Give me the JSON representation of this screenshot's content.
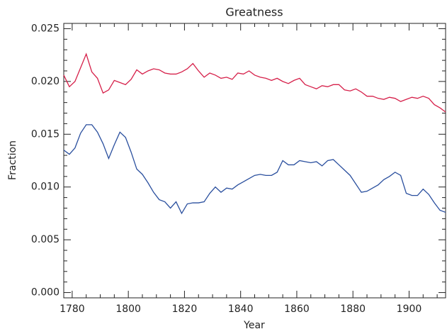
{
  "chart_data": {
    "type": "line",
    "title": "Greatness",
    "x_label": "Year",
    "y_label": "Fraction",
    "x": [
      1777,
      1779,
      1781,
      1783,
      1785,
      1787,
      1789,
      1791,
      1793,
      1795,
      1797,
      1799,
      1801,
      1803,
      1805,
      1807,
      1809,
      1811,
      1813,
      1815,
      1817,
      1819,
      1821,
      1823,
      1825,
      1827,
      1829,
      1831,
      1833,
      1835,
      1837,
      1839,
      1841,
      1843,
      1845,
      1847,
      1849,
      1851,
      1853,
      1855,
      1857,
      1859,
      1861,
      1863,
      1865,
      1867,
      1869,
      1871,
      1873,
      1875,
      1877,
      1879,
      1881,
      1883,
      1885,
      1887,
      1889,
      1891,
      1893,
      1895,
      1897,
      1899,
      1901,
      1903,
      1905,
      1907,
      1909,
      1911,
      1913
    ],
    "series": [
      {
        "color": "#d6204a",
        "values": [
          0.0206,
          0.0195,
          0.02,
          0.0213,
          0.0226,
          0.0209,
          0.0203,
          0.0189,
          0.0192,
          0.0201,
          0.0199,
          0.0197,
          0.0202,
          0.0211,
          0.0207,
          0.021,
          0.0212,
          0.0211,
          0.0208,
          0.0207,
          0.0207,
          0.0209,
          0.0212,
          0.0217,
          0.021,
          0.0204,
          0.0208,
          0.0206,
          0.0203,
          0.0204,
          0.0202,
          0.0208,
          0.0207,
          0.021,
          0.0206,
          0.0204,
          0.0203,
          0.0201,
          0.0203,
          0.02,
          0.0198,
          0.0201,
          0.0203,
          0.0197,
          0.0195,
          0.0193,
          0.0196,
          0.0195,
          0.0197,
          0.0197,
          0.0192,
          0.0191,
          0.0193,
          0.019,
          0.0186,
          0.0186,
          0.0184,
          0.0183,
          0.0185,
          0.0184,
          0.0181,
          0.0183,
          0.0185,
          0.0184,
          0.0186,
          0.0184,
          0.0178,
          0.0175,
          0.0171
        ]
      },
      {
        "color": "#2a4f9e",
        "values": [
          0.0135,
          0.0131,
          0.0137,
          0.0151,
          0.0159,
          0.0159,
          0.0152,
          0.0141,
          0.0127,
          0.014,
          0.0152,
          0.0147,
          0.0133,
          0.0117,
          0.0112,
          0.0104,
          0.0095,
          0.0088,
          0.0086,
          0.008,
          0.0086,
          0.0075,
          0.0084,
          0.0085,
          0.0085,
          0.0086,
          0.0094,
          0.01,
          0.0095,
          0.0099,
          0.0098,
          0.0102,
          0.0105,
          0.0108,
          0.0111,
          0.0112,
          0.0111,
          0.0111,
          0.0114,
          0.0125,
          0.0121,
          0.0121,
          0.0125,
          0.0124,
          0.0123,
          0.0124,
          0.012,
          0.0125,
          0.0126,
          0.0121,
          0.0116,
          0.0111,
          0.0103,
          0.0095,
          0.0096,
          0.0099,
          0.0102,
          0.0107,
          0.011,
          0.0114,
          0.0111,
          0.0094,
          0.0092,
          0.0092,
          0.0098,
          0.0093,
          0.0085,
          0.0078,
          0.0076
        ]
      }
    ],
    "xlim": [
      1777,
      1913
    ],
    "xticks": [
      1780,
      1800,
      1820,
      1840,
      1860,
      1880,
      1900
    ],
    "ylim": [
      -0.0005,
      0.0255
    ],
    "yticks": [
      {
        "value": 0,
        "label": "0.000"
      },
      0.005,
      {
        "value": 0.01,
        "label": "0.010"
      },
      0.015,
      {
        "value": 0.02,
        "label": "0.020"
      },
      0.025
    ]
  }
}
